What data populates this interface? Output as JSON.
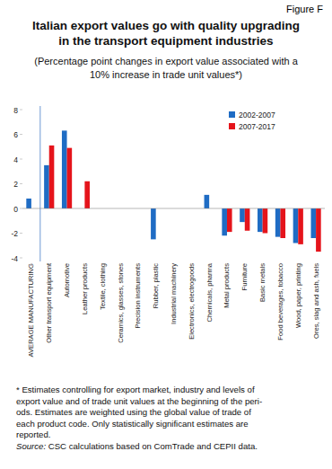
{
  "chart_data": {
    "type": "bar",
    "figure_label": "Figure F",
    "title": "Italian export values go with quality upgrading in the transport equipment industries",
    "subtitle": "(Percentage point changes in export value associated with a 10% increase in trade unit values*)",
    "categories": [
      "AVERAGE MANUFACTURING",
      "Other transport equipment",
      "Automotive",
      "Leather products",
      "Textile, clothing",
      "Ceramics, glasses, stones",
      "Precision instruments",
      "Rubber, plastic",
      "Industrial machinery",
      "Electronics, electrogoods",
      "Chemicals, pharma",
      "Metal products",
      "Furniture",
      "Basic metals",
      "Food beverages, tobacco",
      "Wood, paper, printing",
      "Ores, slag and ash, fuels"
    ],
    "series": [
      {
        "name": "2002-2007",
        "color": "#1f6cc4",
        "values": [
          0.8,
          3.5,
          6.3,
          null,
          null,
          null,
          null,
          -2.5,
          null,
          null,
          1.1,
          -2.2,
          -1.1,
          -1.9,
          -2.3,
          -2.8,
          -2.4
        ]
      },
      {
        "name": "2007-2017",
        "color": "#e5141b",
        "values": [
          null,
          5.1,
          4.9,
          2.2,
          null,
          null,
          null,
          null,
          null,
          null,
          null,
          -1.9,
          -1.8,
          -2.0,
          -2.4,
          -2.9,
          -3.5
        ]
      }
    ],
    "ylim": [
      -4,
      8
    ],
    "yticks": [
      -4,
      -2,
      0,
      2,
      4,
      6,
      8
    ],
    "grid": false,
    "legend": "upper right",
    "notes": [
      "* Estimates controlling for export market, industry and levels of",
      "export value and of trade unit values at the beginning of the peri-",
      "ods. Estimates are weighted using the global value of trade of",
      "each product code. Only statistically significant estimates are",
      "reported."
    ],
    "source": "Source: CSC calculations based on ComTrade and CEPII data."
  }
}
